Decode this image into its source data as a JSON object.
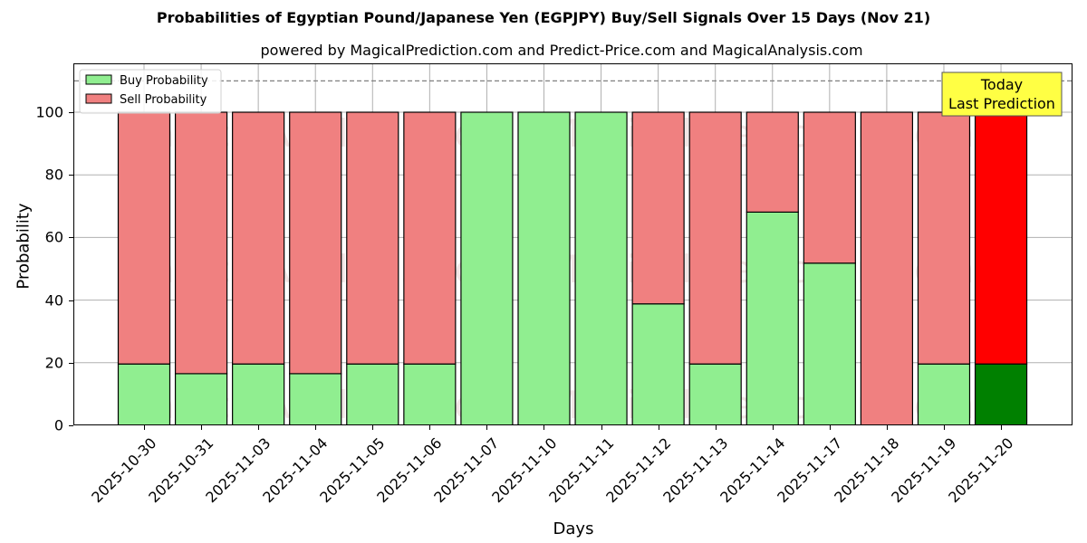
{
  "title": "Probabilities of Egyptian Pound/Japanese Yen (EGPJPY) Buy/Sell Signals Over 15 Days (Nov 21)",
  "subtitle": "powered by MagicalPrediction.com and Predict-Price.com and MagicalAnalysis.com",
  "annotation": {
    "line1": "Today",
    "line2": "Last Prediction"
  },
  "watermarks": [
    "MagicalAnalysis.com",
    "MagicalPrediction.com"
  ],
  "colors": {
    "buy": "#90ee90",
    "sell": "#f08080",
    "today_buy": "#008000",
    "today_sell": "#ff0000",
    "annotation_bg": "#ffff44"
  },
  "chart_data": {
    "type": "bar",
    "stacked": true,
    "title": "Probabilities of Egyptian Pound/Japanese Yen (EGPJPY) Buy/Sell Signals Over 15 Days (Nov 21)",
    "subtitle": "powered by MagicalPrediction.com and Predict-Price.com and MagicalAnalysis.com",
    "xlabel": "Days",
    "ylabel": "Probability",
    "ylim": [
      0,
      115
    ],
    "yticks": [
      0,
      20,
      40,
      60,
      80,
      100
    ],
    "reference_line": 110,
    "grid": true,
    "legend_position": "upper left",
    "categories": [
      "2025-10-30",
      "2025-10-31",
      "2025-11-03",
      "2025-11-04",
      "2025-11-05",
      "2025-11-06",
      "2025-11-07",
      "2025-11-10",
      "2025-11-11",
      "2025-11-12",
      "2025-11-13",
      "2025-11-14",
      "2025-11-17",
      "2025-11-18",
      "2025-11-19",
      "2025-11-20"
    ],
    "series": [
      {
        "name": "Buy Probability",
        "values": [
          19.6,
          16.5,
          19.6,
          16.5,
          19.6,
          19.6,
          100,
          100,
          100,
          38.8,
          19.6,
          68.1,
          51.8,
          0,
          19.6,
          19.6
        ]
      },
      {
        "name": "Sell Probability",
        "values": [
          80.4,
          83.5,
          80.4,
          83.5,
          80.4,
          80.4,
          0,
          0,
          0,
          61.2,
          80.4,
          31.9,
          48.2,
          100,
          80.4,
          80.4
        ]
      }
    ],
    "annotations": [
      "Today Last Prediction"
    ]
  }
}
